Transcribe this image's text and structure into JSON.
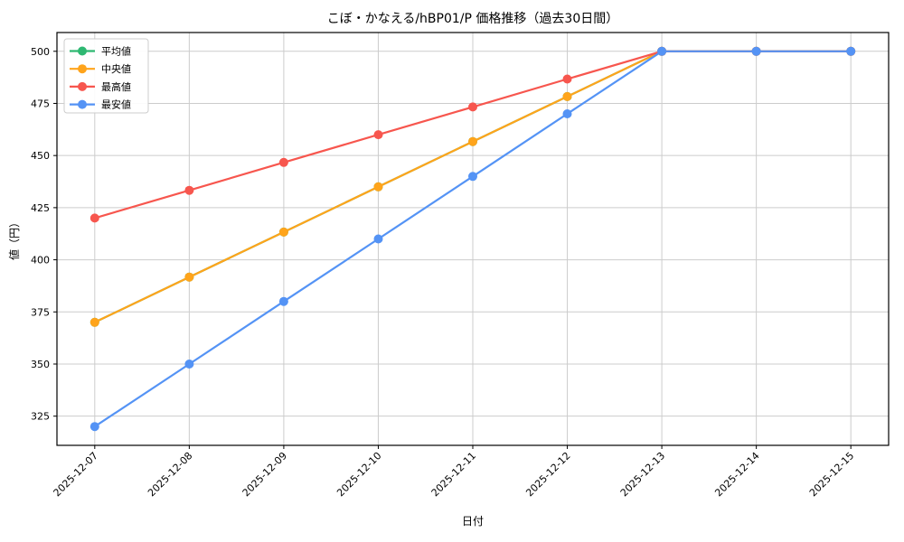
{
  "figure": {
    "background": "#ffffff"
  },
  "chart_data": {
    "type": "line",
    "title": "こぼ・かなえる/hBP01/P 価格推移（過去30日間）",
    "xlabel": "日付",
    "ylabel": "値（円）",
    "categories": [
      "2025-12-07",
      "2025-12-08",
      "2025-12-09",
      "2025-12-10",
      "2025-12-11",
      "2025-12-12",
      "2025-12-13",
      "2025-12-14",
      "2025-12-15"
    ],
    "series": [
      {
        "name": "平均値",
        "color": "#2EB872",
        "values": [
          370,
          391.7,
          413.3,
          435,
          456.7,
          478.3,
          500,
          500,
          500
        ],
        "note": "line coincides with 中央値 and is hidden beneath it"
      },
      {
        "name": "中央値",
        "color": "#FFA41B",
        "values": [
          370,
          391.7,
          413.3,
          435,
          456.7,
          478.3,
          500,
          500,
          500
        ]
      },
      {
        "name": "最高値",
        "color": "#F7564E",
        "values": [
          420,
          433.3,
          446.7,
          460,
          473.3,
          486.7,
          500,
          500,
          500
        ]
      },
      {
        "name": "最安値",
        "color": "#5493F5",
        "values": [
          320,
          350,
          380,
          410,
          440,
          470,
          500,
          500,
          500
        ]
      }
    ],
    "yticks": [
      325,
      350,
      375,
      400,
      425,
      450,
      475,
      500
    ],
    "ylim": [
      311,
      509
    ],
    "grid": true,
    "grid_color": "#cccccc",
    "axis_color": "#000000",
    "legend_position": "upper left",
    "legend_border_color": "#cccccc",
    "marker": "circle",
    "x_tick_rotation": 45
  }
}
